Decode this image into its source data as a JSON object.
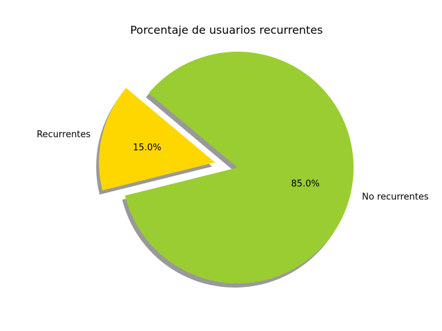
{
  "chart_data": {
    "type": "pie",
    "title": "Porcentaje de usuarios recurrentes",
    "labels": [
      "Recurrentes",
      "No recurrentes"
    ],
    "values": [
      15.0,
      85.0
    ],
    "percent_labels": [
      "15.0%",
      "85.0%"
    ],
    "colors": [
      "#ffd700",
      "#9acd32"
    ],
    "shadow_color": "#999999",
    "exploded": [
      "Recurrentes"
    ],
    "shadow": true
  }
}
